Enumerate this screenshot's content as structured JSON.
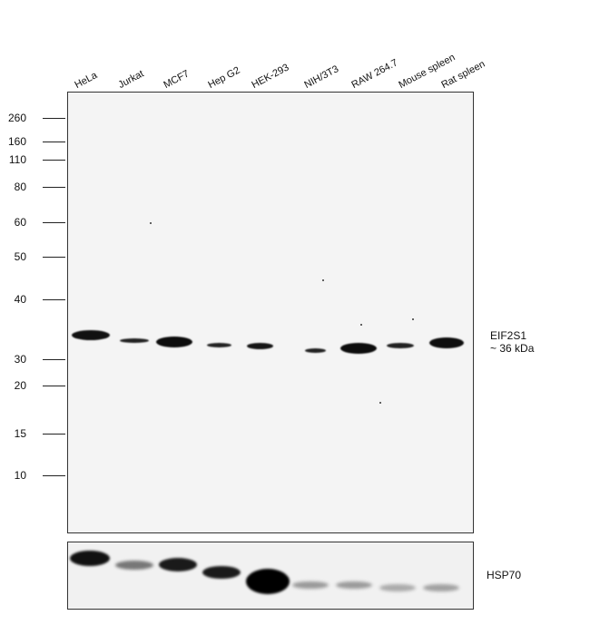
{
  "lanes": [
    "HeLa",
    "Jurkat",
    "MCF7",
    "Hep G2",
    "HEK-293",
    "NIH/3T3",
    "RAW 264.7",
    "Mouse spleen",
    "Rat spleen"
  ],
  "markers": [
    "260",
    "160",
    "110",
    "80",
    "60",
    "50",
    "40",
    "30",
    "20",
    "15",
    "10"
  ],
  "target": {
    "name": "EIF2S1",
    "size": "~ 36 kDa"
  },
  "loading_control": {
    "name": "HSP70"
  }
}
